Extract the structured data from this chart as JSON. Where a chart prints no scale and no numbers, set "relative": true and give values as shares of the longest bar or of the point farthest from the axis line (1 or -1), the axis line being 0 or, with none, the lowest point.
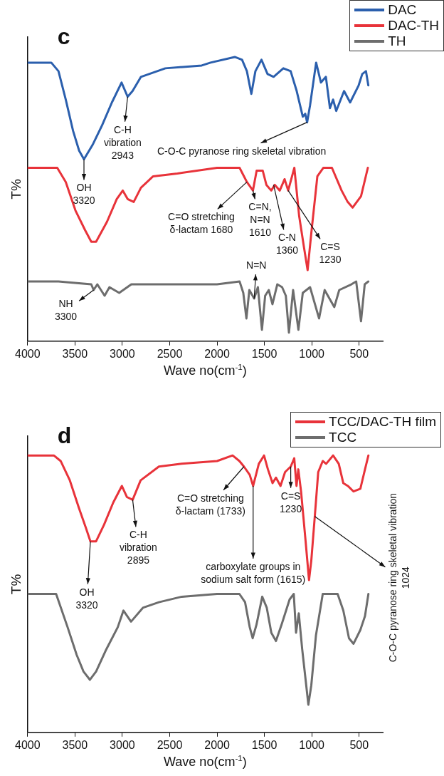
{
  "chart_data": [
    {
      "type": "line",
      "title": "c",
      "xlabel": "Wave no(cm$^{-1}$)",
      "ylabel": "T%",
      "relative": true,
      "xlim": [
        4000,
        250
      ],
      "xticks": [
        4000,
        3500,
        3000,
        2500,
        2000,
        1500,
        1000,
        500
      ],
      "legend": "top right",
      "marker": "none",
      "line_style": "solid",
      "series": [
        {
          "name": "DAC",
          "color": "#2b5fad",
          "x": [
            4000,
            3750,
            3674,
            3597,
            3520,
            3456,
            3405,
            3315,
            3213,
            3110,
            3008,
            2944,
            2892,
            2803,
            2546,
            2162,
            2069,
            1813,
            1736,
            1685,
            1638,
            1595,
            1531,
            1467,
            1403,
            1300,
            1223,
            1159,
            1095,
            1069,
            1049,
            1018,
            954,
            903,
            851,
            808,
            775,
            742,
            659,
            595,
            505,
            467,
            428,
            403
          ],
          "values": [
            0.98,
            0.98,
            0.95,
            0.85,
            0.74,
            0.67,
            0.64,
            0.69,
            0.76,
            0.84,
            0.91,
            0.86,
            0.88,
            0.93,
            0.96,
            0.97,
            0.98,
            1.0,
            0.99,
            0.95,
            0.87,
            0.95,
            0.99,
            0.94,
            0.93,
            0.96,
            0.95,
            0.88,
            0.79,
            0.8,
            0.77,
            0.83,
            0.98,
            0.91,
            0.93,
            0.82,
            0.85,
            0.81,
            0.88,
            0.84,
            0.9,
            0.94,
            0.95,
            0.9
          ]
        },
        {
          "name": "DAC-TH",
          "color": "#e8333a",
          "x": [
            4000,
            3687,
            3597,
            3495,
            3392,
            3328,
            3277,
            3162,
            3059,
            2995,
            2944,
            2880,
            2803,
            2675,
            2418,
            2000,
            1813,
            1762,
            1685,
            1621,
            1582,
            1518,
            1479,
            1428,
            1390,
            1338,
            1287,
            1249,
            1184,
            1133,
            1082,
            1044,
            1005,
            941,
            877,
            787,
            685,
            621,
            569,
            480,
            408
          ],
          "values": [
            0.61,
            0.61,
            0.56,
            0.46,
            0.39,
            0.35,
            0.35,
            0.42,
            0.5,
            0.53,
            0.5,
            0.49,
            0.54,
            0.58,
            0.59,
            0.61,
            0.61,
            0.61,
            0.56,
            0.53,
            0.6,
            0.6,
            0.55,
            0.53,
            0.55,
            0.53,
            0.57,
            0.53,
            0.61,
            0.44,
            0.33,
            0.25,
            0.38,
            0.58,
            0.61,
            0.61,
            0.53,
            0.49,
            0.47,
            0.51,
            0.61
          ]
        },
        {
          "name": "TH",
          "color": "#6d6d6d",
          "x": [
            4000,
            3674,
            3328,
            3303,
            3264,
            3187,
            3136,
            3033,
            2905,
            2546,
            2000,
            1762,
            1723,
            1690,
            1659,
            1608,
            1569,
            1526,
            1492,
            1454,
            1415,
            1364,
            1313,
            1274,
            1241,
            1197,
            1141,
            1095,
            1018,
            923,
            864,
            762,
            710,
            582,
            531,
            480,
            441,
            403
          ],
          "values": [
            0.21,
            0.21,
            0.2,
            0.18,
            0.2,
            0.16,
            0.19,
            0.17,
            0.2,
            0.2,
            0.2,
            0.21,
            0.17,
            0.08,
            0.18,
            0.15,
            0.19,
            0.04,
            0.16,
            0.18,
            0.13,
            0.2,
            0.19,
            0.16,
            0.03,
            0.18,
            0.04,
            0.17,
            0.19,
            0.08,
            0.18,
            0.12,
            0.18,
            0.2,
            0.21,
            0.07,
            0.2,
            0.21
          ]
        }
      ],
      "annotations": [
        {
          "text": "OH\n3320",
          "x": 3405,
          "y": 0.64
        },
        {
          "text": "C-H\nvibration\n2943",
          "x": 2944,
          "y": 0.86
        },
        {
          "text": "C-O-C pyranose ring skeletal vibration",
          "x": 1049,
          "y": 0.77
        },
        {
          "text": "C=O stretching\nδ-lactam 1680",
          "x": 1685,
          "y": 0.56
        },
        {
          "text": "C=N,\nN=N\n1610",
          "x": 1621,
          "y": 0.53
        },
        {
          "text": "N=N",
          "x": 1608,
          "y": 0.15
        },
        {
          "text": "C-N\n1360",
          "x": 1403,
          "y": 0.55
        },
        {
          "text": "C=S\n1230",
          "x": 1249,
          "y": 0.53
        },
        {
          "text": "NH\n3300",
          "x": 3303,
          "y": 0.18
        }
      ]
    },
    {
      "type": "line",
      "title": "d",
      "xlabel": "Wave no(cm$^{-1}$)",
      "ylabel": "T%",
      "relative": true,
      "xlim": [
        4000,
        250
      ],
      "xticks": [
        4000,
        3500,
        3000,
        2500,
        2000,
        1500,
        1000,
        500
      ],
      "legend": "top right",
      "marker": "none",
      "line_style": "solid",
      "series": [
        {
          "name": "TCC/DAC-TH film",
          "color": "#e8333a",
          "x": [
            4000,
            3723,
            3651,
            3554,
            3458,
            3386,
            3337,
            3277,
            3193,
            3096,
            3005,
            2952,
            2891,
            2807,
            2614,
            2373,
            2000,
            1836,
            1764,
            1716,
            1655,
            1619,
            1559,
            1504,
            1463,
            1414,
            1378,
            1330,
            1282,
            1222,
            1185,
            1161,
            1142,
            1113,
            1089,
            1065,
            1029,
            1005,
            968,
            932,
            884,
            848,
            775,
            715,
            667,
            619,
            559,
            487,
            438,
            402
          ],
          "values": [
            1.0,
            1.0,
            0.98,
            0.91,
            0.81,
            0.74,
            0.69,
            0.69,
            0.75,
            0.83,
            0.89,
            0.85,
            0.84,
            0.91,
            0.96,
            0.97,
            0.98,
            1.0,
            0.98,
            0.96,
            0.93,
            0.89,
            0.97,
            1.0,
            0.95,
            0.9,
            0.92,
            0.89,
            0.94,
            0.96,
            0.99,
            0.89,
            0.95,
            0.87,
            0.78,
            0.69,
            0.55,
            0.62,
            0.78,
            0.94,
            0.98,
            0.97,
            1.0,
            0.97,
            0.9,
            0.89,
            0.87,
            0.88,
            0.95,
            1.0
          ]
        },
        {
          "name": "TCC",
          "color": "#6d6d6d",
          "x": [
            4000,
            3699,
            3578,
            3482,
            3410,
            3342,
            3277,
            3169,
            3048,
            2988,
            2908,
            2783,
            2614,
            2373,
            2000,
            1764,
            1704,
            1655,
            1624,
            1583,
            1523,
            1475,
            1427,
            1378,
            1318,
            1234,
            1190,
            1166,
            1137,
            1101,
            1065,
            1036,
            1005,
            956,
            884,
            812,
            727,
            667,
            607,
            559,
            487,
            438,
            402
          ],
          "values": [
            0.5,
            0.5,
            0.38,
            0.28,
            0.22,
            0.19,
            0.22,
            0.3,
            0.38,
            0.44,
            0.4,
            0.45,
            0.47,
            0.49,
            0.5,
            0.5,
            0.47,
            0.38,
            0.34,
            0.39,
            0.49,
            0.45,
            0.36,
            0.33,
            0.39,
            0.48,
            0.5,
            0.36,
            0.43,
            0.3,
            0.19,
            0.1,
            0.17,
            0.35,
            0.5,
            0.5,
            0.5,
            0.44,
            0.34,
            0.32,
            0.37,
            0.42,
            0.5
          ]
        }
      ],
      "annotations": [
        {
          "text": "OH\n3320",
          "x": 3337,
          "y": 0.69
        },
        {
          "text": "C-H\nvibration\n2895",
          "x": 2891,
          "y": 0.84
        },
        {
          "text": "C=O stretching\nδ-lactam (1733)",
          "x": 1716,
          "y": 0.96
        },
        {
          "text": "carboxylate groups in\nsodium salt form (1615)",
          "x": 1619,
          "y": 0.89
        },
        {
          "text": "C=S\n1230",
          "x": 1222,
          "y": 0.96
        },
        {
          "text": "C-O-C pyranose ring skeletal vibration\n1024",
          "x": 968,
          "y": 0.78
        }
      ]
    }
  ]
}
